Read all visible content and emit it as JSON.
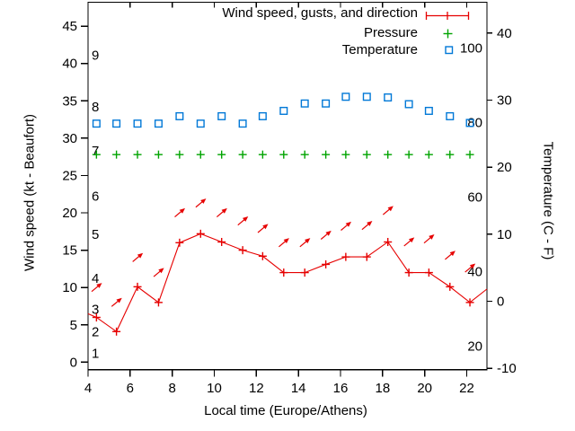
{
  "colors": {
    "wind": "#e60000",
    "pressure": "#00a400",
    "temperature": "#0078d7",
    "axis": "#000000",
    "background": "#ffffff"
  },
  "chart_data": {
    "type": "line",
    "title": "",
    "legend": {
      "position": "top-right-inside",
      "entries": [
        {
          "label": "Wind speed, gusts, and direction",
          "marker": "red-errorbar-line"
        },
        {
          "label": "Pressure",
          "marker": "green-plus"
        },
        {
          "label": "Temperature",
          "marker": "blue-open-square"
        }
      ]
    },
    "axes": {
      "x": {
        "label": "Local time (Europe/Athens)",
        "min": 4,
        "max": 22.96,
        "ticks": [
          4,
          6,
          8,
          10,
          12,
          14,
          16,
          18,
          20,
          22
        ],
        "grid": false
      },
      "y_left": {
        "label": "Wind speed (kt - Beaufort)",
        "min": -1,
        "max": 48.2,
        "ticks": [
          0,
          5,
          10,
          15,
          20,
          25,
          30,
          35,
          40,
          45
        ],
        "inner_scale": {
          "name": "Beaufort",
          "labels": [
            1,
            2,
            3,
            4,
            5,
            6,
            7,
            8,
            9
          ],
          "kt_positions": [
            1.2,
            4.1,
            7.1,
            11.2,
            17.1,
            22.2,
            28.3,
            34.2,
            41.1
          ]
        }
      },
      "y_right": {
        "label": "Temperature (C - F)",
        "min": -10.2,
        "max": 44.6,
        "ticks": [
          -10,
          0,
          10,
          20,
          30,
          40
        ],
        "inner_scale": {
          "name": "Fahrenheit",
          "labels": [
            20,
            40,
            60,
            80,
            100
          ]
        }
      }
    },
    "x_hours": [
      4.4,
      5.35,
      6.35,
      7.35,
      8.35,
      9.35,
      10.35,
      11.35,
      12.3,
      13.3,
      14.3,
      15.3,
      16.25,
      17.25,
      18.25,
      19.25,
      20.2,
      21.2,
      22.15
    ],
    "series": [
      {
        "name": "wind_speed_kt",
        "axis": "left",
        "marker": "plus",
        "line": true,
        "values": [
          6,
          4.1,
          10.1,
          8,
          16,
          17.2,
          16.1,
          15,
          14.2,
          12,
          12,
          13.1,
          14.1,
          14.1,
          16.1,
          12,
          12,
          10.1,
          8
        ],
        "lead_point": {
          "t": 4.0,
          "v": 6.5
        },
        "trail_point": {
          "t": 22.96,
          "v": 9.8
        }
      },
      {
        "name": "wind_gust_kt_with_direction_arrows",
        "axis": "left",
        "marker": "arrow-northeast",
        "direction_deg": 40,
        "values": [
          10,
          8,
          14,
          12,
          20,
          21.3,
          20,
          18.9,
          17.9,
          16,
          16,
          17,
          18.2,
          18.3,
          20.3,
          16.1,
          16.5,
          14.3,
          12.6
        ]
      },
      {
        "name": "pressure",
        "axis": "left-equivalent-position",
        "marker": "plus",
        "note": "flat line, no numeric pressure scale shown",
        "values": [
          27.8,
          27.8,
          27.8,
          27.8,
          27.8,
          27.8,
          27.8,
          27.8,
          27.8,
          27.8,
          27.8,
          27.8,
          27.8,
          27.8,
          27.8,
          27.8,
          27.8,
          27.8,
          27.8
        ]
      },
      {
        "name": "temperature_c",
        "axis": "right",
        "marker": "open-square",
        "values": [
          26.5,
          26.5,
          26.5,
          26.5,
          27.6,
          26.5,
          27.6,
          26.5,
          27.6,
          28.4,
          29.5,
          29.5,
          30.5,
          30.5,
          30.4,
          29.4,
          28.4,
          27.6,
          26.6
        ]
      }
    ]
  }
}
